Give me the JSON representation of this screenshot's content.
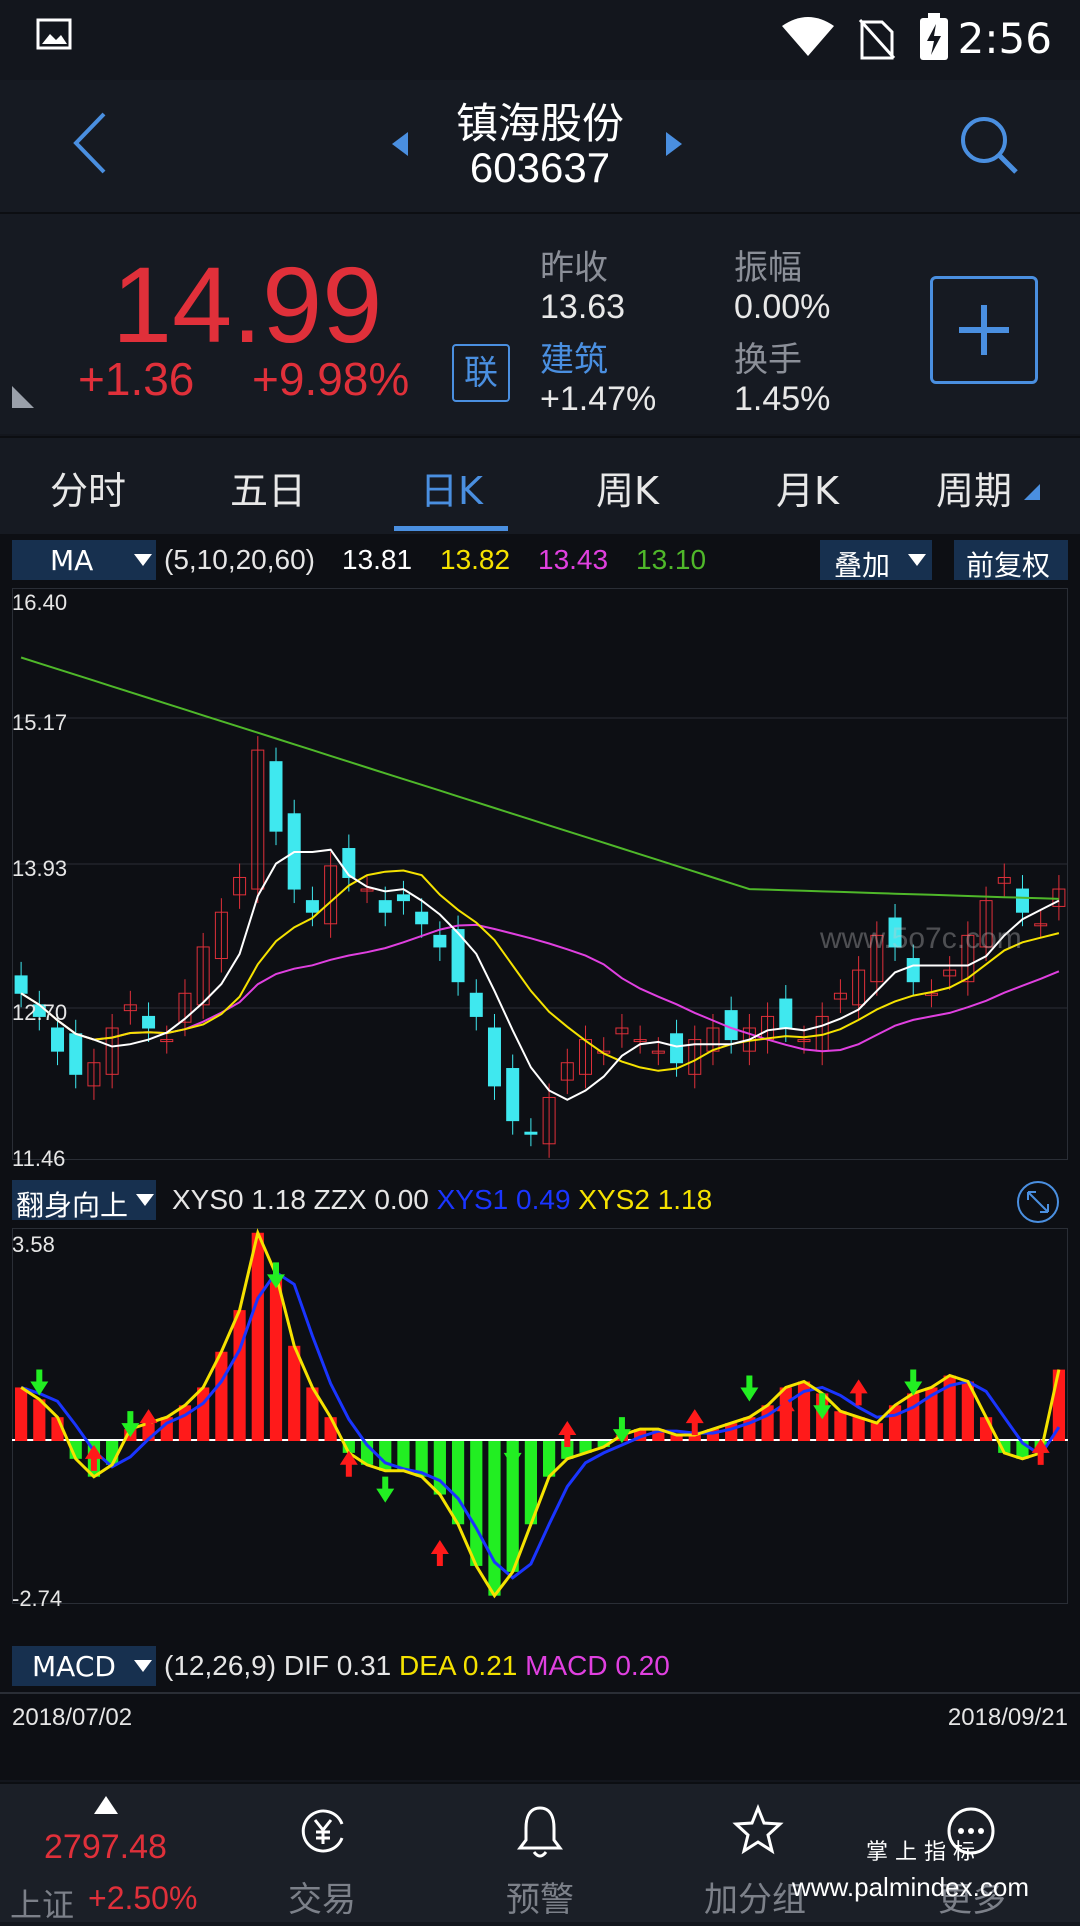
{
  "status": {
    "time": "2:56"
  },
  "header": {
    "stock_name": "镇海股份",
    "stock_code": "603637"
  },
  "quote": {
    "price": "14.99",
    "change": "+1.36",
    "change_pct": "+9.98%",
    "link_badge": "联",
    "prev_close_label": "昨收",
    "prev_close": "13.63",
    "amplitude_label": "振幅",
    "amplitude": "0.00%",
    "sector_label": "建筑",
    "sector_change": "+1.47%",
    "turnover_label": "换手",
    "turnover": "1.45%"
  },
  "tabs": [
    {
      "label": "分时"
    },
    {
      "label": "五日"
    },
    {
      "label": "日K",
      "active": true
    },
    {
      "label": "周K"
    },
    {
      "label": "月K"
    },
    {
      "label": "周期"
    }
  ],
  "ma_panel": {
    "indicator": "MA",
    "params": "(5,10,20,60)",
    "v5": "13.81",
    "v10": "13.82",
    "v20": "13.43",
    "v60": "13.10",
    "overlay_label": "叠加",
    "adjust_label": "前复权",
    "ticks": [
      "16.40",
      "15.17",
      "13.93",
      "12.70",
      "11.46"
    ]
  },
  "xys_panel": {
    "indicator": "翻身向上",
    "xys0_label": "XYS0",
    "xys0": "1.18",
    "zzx_label": "ZZX",
    "zzx": "0.00",
    "xys1_label": "XYS1",
    "xys1": "0.49",
    "xys2_label": "XYS2",
    "xys2": "1.18",
    "top": "3.58",
    "bottom": "-2.74"
  },
  "macd_panel": {
    "indicator": "MACD",
    "params": "(12,26,9)",
    "dif_label": "DIF",
    "dif": "0.31",
    "dea_label": "DEA",
    "dea": "0.21",
    "macd_label": "MACD",
    "macd": "0.20"
  },
  "dates": {
    "start": "2018/07/02",
    "end": "2018/09/21"
  },
  "nav": {
    "index_value": "2797.48",
    "index_name": "上证",
    "index_change": "+2.50%",
    "items": [
      {
        "label": "交易"
      },
      {
        "label": "预警"
      },
      {
        "label": "加分组"
      },
      {
        "label": "更多"
      }
    ]
  },
  "watermark": {
    "text1": "www.5o7c.com",
    "text2": "掌 上 指 标",
    "text3": "www.palmindex.com"
  },
  "colors": {
    "up": "#e0303a",
    "down": "#3fe8ef",
    "accent": "#4a8fe0",
    "ma5": "#ffffff",
    "ma10": "#f5e200",
    "ma20": "#e040e0",
    "ma60": "#4fb82a"
  }
}
